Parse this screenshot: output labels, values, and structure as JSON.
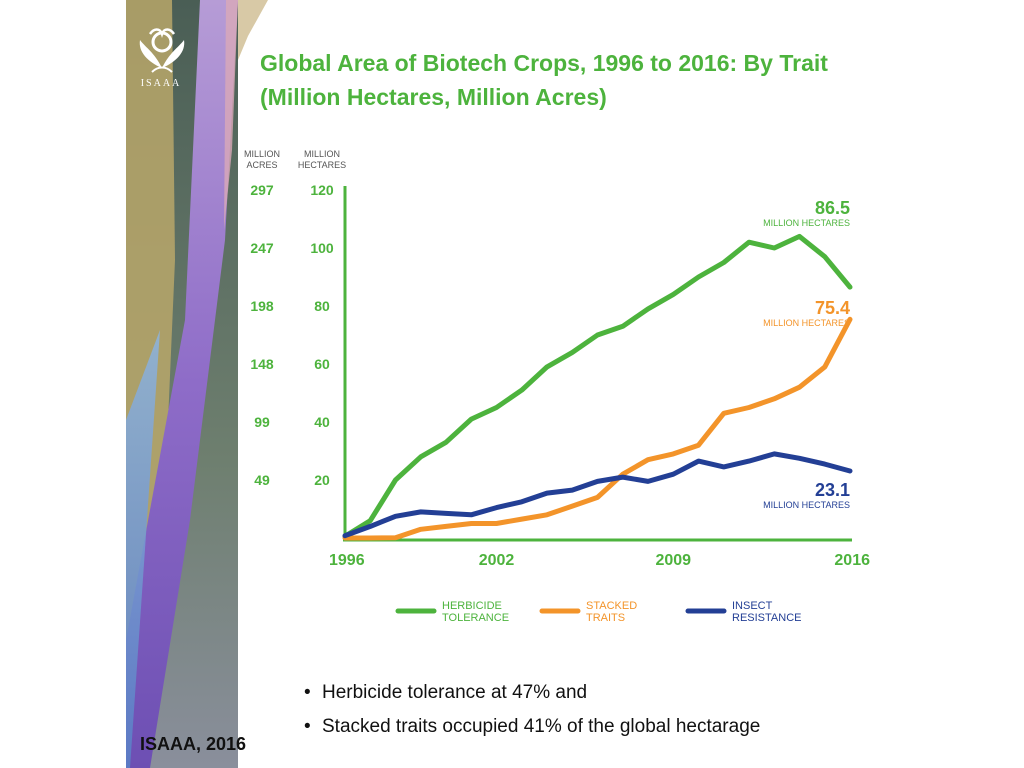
{
  "slide": {
    "logo_text": "ISAAA",
    "title_line1": "Global Area of Biotech Crops, 1996 to 2016: By Trait",
    "title_line2": "(Million Hectares, Million Acres)",
    "bullets": [
      "Herbicide tolerance at 47% and",
      "Stacked traits occupied 41% of the global hectarage"
    ],
    "source": "ISAAA, 2016",
    "colors": {
      "accent": "#4db33d",
      "stacked": "#f3942a",
      "insect": "#233f95"
    }
  },
  "chart_data": {
    "type": "line",
    "title": "Global Area of Biotech Crops, 1996 to 2016: By Trait",
    "subtitle": "(Million Hectares, Million Acres)",
    "axis_headers": {
      "acres": [
        "MILLION",
        "ACRES"
      ],
      "hectares": [
        "MILLION",
        "HECTARES"
      ]
    },
    "x": [
      1996,
      1997,
      1998,
      1999,
      2000,
      2001,
      2002,
      2003,
      2004,
      2005,
      2006,
      2007,
      2008,
      2009,
      2010,
      2011,
      2012,
      2013,
      2014,
      2015,
      2016
    ],
    "x_ticks": [
      "1996",
      "2002",
      "2009",
      "2016"
    ],
    "xlim": [
      1996,
      2016
    ],
    "ylim": [
      0,
      120
    ],
    "y_ticks": [
      20,
      40,
      60,
      80,
      100,
      120
    ],
    "y_ticks_labels": [
      "20",
      "40",
      "60",
      "80",
      "100",
      "120"
    ],
    "acres_ticks_labels": [
      "49",
      "99",
      "148",
      "198",
      "247",
      "297"
    ],
    "grid": false,
    "legend_position": "bottom",
    "series": [
      {
        "name": "HERBICIDE TOLERANCE",
        "legend": [
          "HERBICIDE",
          "TOLERANCE"
        ],
        "color": "#4db33d",
        "values": [
          0.6,
          6,
          20,
          28,
          33,
          41,
          45,
          51,
          59,
          64,
          70,
          73,
          79,
          84,
          90,
          95,
          102,
          100,
          104,
          97,
          86.5
        ],
        "end_label": "86.5",
        "end_unit": "MILLION HECTARES"
      },
      {
        "name": "STACKED TRAITS",
        "legend": [
          "STACKED",
          "TRAITS"
        ],
        "color": "#f3942a",
        "values": [
          0,
          0,
          0.1,
          3,
          4,
          5,
          5,
          6.5,
          8,
          11,
          14,
          22,
          27,
          29,
          32,
          43,
          45,
          48,
          52,
          59,
          75.4
        ],
        "end_label": "75.4",
        "end_unit": "MILLION HECTARES"
      },
      {
        "name": "INSECT RESISTANCE",
        "legend": [
          "INSECT",
          "RESISTANCE"
        ],
        "color": "#233f95",
        "values": [
          0.8,
          4,
          7.5,
          9,
          8.5,
          8,
          10.5,
          12.5,
          15.5,
          16.5,
          19.5,
          21,
          19.5,
          22,
          26.5,
          24.5,
          26.5,
          29,
          27.5,
          25.5,
          23.1
        ],
        "end_label": "23.1",
        "end_unit": "MILLION HECTARES"
      }
    ]
  }
}
